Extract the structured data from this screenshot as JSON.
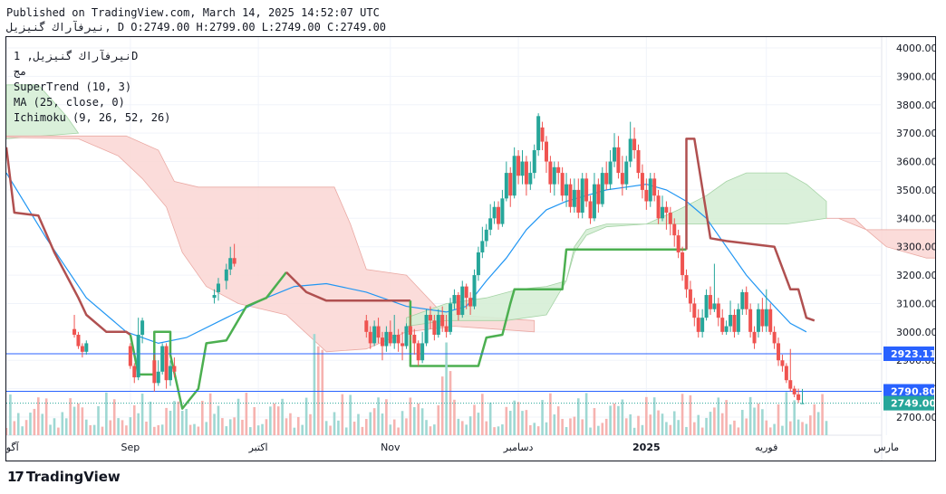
{
  "header": {
    "published": "Published on TradingView.com, March 14, 2025 14:52:07 UTC",
    "ohlc": "نیرفآراك گنیزیل, D O:2749.00 H:2799.00 L:2749.00 C:2749.00"
  },
  "legend": {
    "symbol": "نیرفآراك گنیزیل, 1D",
    "exchange": "مج",
    "supertrend": "SuperTrend (10, 3)",
    "ma": "MA (25, close, 0)",
    "ichimoku": "Ichimoku (9, 26, 52, 26)"
  },
  "footer": {
    "brand": "TradingView",
    "logo": "17"
  },
  "colors": {
    "up": "#26a69a",
    "down": "#ef5350",
    "supertrend_up": "#4caf50",
    "supertrend_down": "#b05050",
    "ma": "#2196f3",
    "cloud_bull": "#d6efd6",
    "cloud_bear": "#fbd9d6",
    "line_blue": "#2962ff",
    "label_last": "#26a69a"
  },
  "chart_data": {
    "type": "candlestick",
    "title": "نیرفآراك گنیزیل, 1D",
    "ylim": [
      2650,
      4020
    ],
    "y_ticks": [
      {
        "value": 2700,
        "label": "2700.00"
      },
      {
        "value": 2800,
        "label": "2800.00"
      },
      {
        "value": 2900,
        "label": "2900.00"
      },
      {
        "value": 3000,
        "label": "3000.00"
      },
      {
        "value": 3100,
        "label": "3100.00"
      },
      {
        "value": 3200,
        "label": "3200.00"
      },
      {
        "value": 3300,
        "label": "3300.00"
      },
      {
        "value": 3400,
        "label": "3400.00"
      },
      {
        "value": 3500,
        "label": "3500.00"
      },
      {
        "value": 3600,
        "label": "3600.00"
      },
      {
        "value": 3700,
        "label": "3700.00"
      },
      {
        "value": 3800,
        "label": "3800.00"
      },
      {
        "value": 3900,
        "label": "3900.00"
      },
      {
        "value": 4000,
        "label": "4000.00"
      }
    ],
    "x_labels": [
      "آگوس",
      "Sep",
      "اکتبر",
      "Nov",
      "دسامبر",
      "2025",
      "فوریه",
      "مارس"
    ],
    "x_label_index": [
      0,
      31,
      63,
      96,
      128,
      160,
      190,
      220
    ],
    "n_bars": 256,
    "horizontal_lines": [
      {
        "value": 2923.11,
        "label": "2923.11",
        "color": "#2962ff"
      },
      {
        "value": 2790.8,
        "label": "2790.80",
        "color": "#2962ff"
      }
    ],
    "last_price": {
      "value": 2749.0,
      "label": "2749.00"
    },
    "candles": [
      [
        17,
        3010,
        2990,
        3060,
        2980
      ],
      [
        18,
        2990,
        2950,
        3000,
        2940
      ],
      [
        19,
        2950,
        2930,
        2960,
        2910
      ],
      [
        20,
        2930,
        2960,
        2970,
        2920
      ],
      [
        31,
        2950,
        2880,
        2960,
        2870
      ],
      [
        32,
        2880,
        2840,
        2890,
        2820
      ],
      [
        33,
        2840,
        2990,
        3050,
        2830
      ],
      [
        34,
        2990,
        3040,
        3050,
        2960
      ],
      [
        37,
        2900,
        2820,
        2920,
        2790
      ],
      [
        38,
        2820,
        2860,
        2900,
        2810
      ],
      [
        39,
        2860,
        2950,
        2960,
        2850
      ],
      [
        40,
        2950,
        2830,
        2960,
        2800
      ],
      [
        41,
        2830,
        2880,
        2900,
        2810
      ],
      [
        42,
        2880,
        2860,
        2910,
        2840
      ],
      [
        52,
        3120,
        3130,
        3150,
        3100
      ],
      [
        53,
        3140,
        3170,
        3190,
        3110
      ],
      [
        55,
        3180,
        3220,
        3240,
        3150
      ],
      [
        56,
        3220,
        3260,
        3300,
        3200
      ],
      [
        57,
        3260,
        3240,
        3310,
        3230
      ],
      [
        90,
        3040,
        3000,
        3060,
        2980
      ],
      [
        91,
        3000,
        2960,
        3020,
        2940
      ],
      [
        92,
        2960,
        3020,
        3040,
        2950
      ],
      [
        93,
        3020,
        2980,
        3050,
        2960
      ],
      [
        94,
        2980,
        2950,
        3000,
        2900
      ],
      [
        95,
        2950,
        3000,
        3020,
        2930
      ],
      [
        96,
        3000,
        2960,
        3040,
        2950
      ],
      [
        97,
        2960,
        2990,
        3060,
        2940
      ],
      [
        98,
        2990,
        2960,
        3010,
        2930
      ],
      [
        99,
        2960,
        2950,
        3000,
        2900
      ],
      [
        100,
        2950,
        3020,
        3030,
        2940
      ],
      [
        101,
        3020,
        2990,
        3060,
        2970
      ],
      [
        102,
        2990,
        2960,
        3010,
        2920
      ],
      [
        103,
        2960,
        2900,
        2970,
        2880
      ],
      [
        104,
        2900,
        2960,
        3000,
        2890
      ],
      [
        105,
        2960,
        3060,
        3080,
        2950
      ],
      [
        106,
        3060,
        3040,
        3090,
        3010
      ],
      [
        107,
        3040,
        2990,
        3060,
        2970
      ],
      [
        108,
        2990,
        3060,
        3080,
        2980
      ],
      [
        109,
        3060,
        3020,
        3090,
        3000
      ],
      [
        110,
        3020,
        3000,
        3060,
        2980
      ],
      [
        111,
        3000,
        3100,
        3120,
        2990
      ],
      [
        112,
        3100,
        3130,
        3150,
        3080
      ],
      [
        113,
        3130,
        3060,
        3140,
        3040
      ],
      [
        114,
        3060,
        3160,
        3180,
        3050
      ],
      [
        115,
        3160,
        3120,
        3170,
        3080
      ],
      [
        116,
        3120,
        3090,
        3140,
        3060
      ],
      [
        117,
        3090,
        3200,
        3220,
        3080
      ],
      [
        118,
        3200,
        3280,
        3300,
        3180
      ],
      [
        119,
        3280,
        3320,
        3370,
        3260
      ],
      [
        120,
        3320,
        3360,
        3380,
        3300
      ],
      [
        121,
        3360,
        3400,
        3450,
        3340
      ],
      [
        122,
        3400,
        3440,
        3460,
        3380
      ],
      [
        123,
        3440,
        3380,
        3460,
        3360
      ],
      [
        124,
        3380,
        3470,
        3500,
        3370
      ],
      [
        125,
        3470,
        3560,
        3600,
        3460
      ],
      [
        126,
        3560,
        3480,
        3580,
        3440
      ],
      [
        127,
        3480,
        3620,
        3650,
        3470
      ],
      [
        128,
        3620,
        3550,
        3640,
        3520
      ],
      [
        129,
        3550,
        3600,
        3640,
        3520
      ],
      [
        130,
        3600,
        3520,
        3620,
        3480
      ],
      [
        131,
        3520,
        3560,
        3600,
        3500
      ],
      [
        132,
        3560,
        3640,
        3660,
        3540
      ],
      [
        133,
        3640,
        3760,
        3770,
        3620
      ],
      [
        134,
        3720,
        3670,
        3740,
        3640
      ],
      [
        135,
        3670,
        3600,
        3690,
        3560
      ],
      [
        136,
        3600,
        3520,
        3620,
        3490
      ],
      [
        137,
        3520,
        3580,
        3600,
        3480
      ],
      [
        138,
        3580,
        3560,
        3600,
        3520
      ],
      [
        139,
        3560,
        3480,
        3580,
        3460
      ],
      [
        140,
        3480,
        3520,
        3560,
        3440
      ],
      [
        141,
        3520,
        3440,
        3540,
        3420
      ],
      [
        142,
        3440,
        3500,
        3540,
        3420
      ],
      [
        143,
        3500,
        3420,
        3540,
        3400
      ],
      [
        144,
        3420,
        3540,
        3560,
        3400
      ],
      [
        145,
        3540,
        3460,
        3560,
        3440
      ],
      [
        146,
        3460,
        3400,
        3480,
        3380
      ],
      [
        147,
        3400,
        3520,
        3560,
        3390
      ],
      [
        148,
        3520,
        3450,
        3540,
        3420
      ],
      [
        149,
        3450,
        3560,
        3580,
        3440
      ],
      [
        150,
        3560,
        3520,
        3600,
        3500
      ],
      [
        151,
        3520,
        3600,
        3640,
        3500
      ],
      [
        152,
        3600,
        3650,
        3700,
        3580
      ],
      [
        153,
        3650,
        3560,
        3690,
        3540
      ],
      [
        154,
        3560,
        3520,
        3620,
        3480
      ],
      [
        155,
        3520,
        3600,
        3620,
        3500
      ],
      [
        156,
        3600,
        3680,
        3740,
        3580
      ],
      [
        157,
        3680,
        3640,
        3720,
        3610
      ],
      [
        158,
        3640,
        3560,
        3660,
        3540
      ],
      [
        159,
        3560,
        3500,
        3590,
        3470
      ],
      [
        160,
        3500,
        3460,
        3540,
        3430
      ],
      [
        161,
        3460,
        3540,
        3560,
        3440
      ],
      [
        162,
        3540,
        3480,
        3560,
        3460
      ],
      [
        163,
        3480,
        3400,
        3500,
        3380
      ],
      [
        164,
        3400,
        3440,
        3480,
        3390
      ],
      [
        165,
        3440,
        3420,
        3460,
        3360
      ],
      [
        166,
        3420,
        3380,
        3440,
        3340
      ],
      [
        167,
        3380,
        3340,
        3400,
        3300
      ],
      [
        168,
        3340,
        3280,
        3360,
        3260
      ],
      [
        169,
        3280,
        3200,
        3300,
        3180
      ],
      [
        170,
        3200,
        3150,
        3220,
        3120
      ],
      [
        171,
        3150,
        3100,
        3180,
        3070
      ],
      [
        172,
        3100,
        3050,
        3120,
        3020
      ],
      [
        173,
        3050,
        3000,
        3080,
        2980
      ],
      [
        174,
        3000,
        3050,
        3080,
        2980
      ],
      [
        175,
        3050,
        3130,
        3150,
        3040
      ],
      [
        176,
        3130,
        3080,
        3160,
        3060
      ],
      [
        177,
        3080,
        3100,
        3240,
        3070
      ],
      [
        178,
        3100,
        3050,
        3120,
        3020
      ],
      [
        179,
        3050,
        3000,
        3080,
        2990
      ],
      [
        180,
        3000,
        3020,
        3040,
        2990
      ],
      [
        181,
        3020,
        3060,
        3110,
        3000
      ],
      [
        182,
        3060,
        3000,
        3080,
        2980
      ],
      [
        183,
        3000,
        3080,
        3100,
        2990
      ],
      [
        184,
        3080,
        3140,
        3150,
        3060
      ],
      [
        185,
        3140,
        3080,
        3160,
        3060
      ],
      [
        186,
        3080,
        3000,
        3100,
        2980
      ],
      [
        187,
        3000,
        2960,
        3020,
        2940
      ],
      [
        188,
        3000,
        3080,
        3100,
        2980
      ],
      [
        189,
        3080,
        3020,
        3120,
        3000
      ],
      [
        190,
        3020,
        3080,
        3150,
        3000
      ],
      [
        191,
        3080,
        3000,
        3100,
        2990
      ],
      [
        192,
        3000,
        2960,
        3020,
        2940
      ],
      [
        193,
        2960,
        2900,
        2980,
        2880
      ],
      [
        194,
        2900,
        2880,
        2920,
        2860
      ],
      [
        195,
        2880,
        2830,
        2890,
        2820
      ],
      [
        196,
        2830,
        2800,
        2940,
        2790
      ],
      [
        197,
        2800,
        2780,
        2810,
        2770
      ],
      [
        198,
        2780,
        2760,
        2800,
        2750
      ],
      [
        199,
        2749,
        2749,
        2799,
        2749
      ]
    ],
    "volumes_note": "volume histogram shown at chart bottom"
  }
}
